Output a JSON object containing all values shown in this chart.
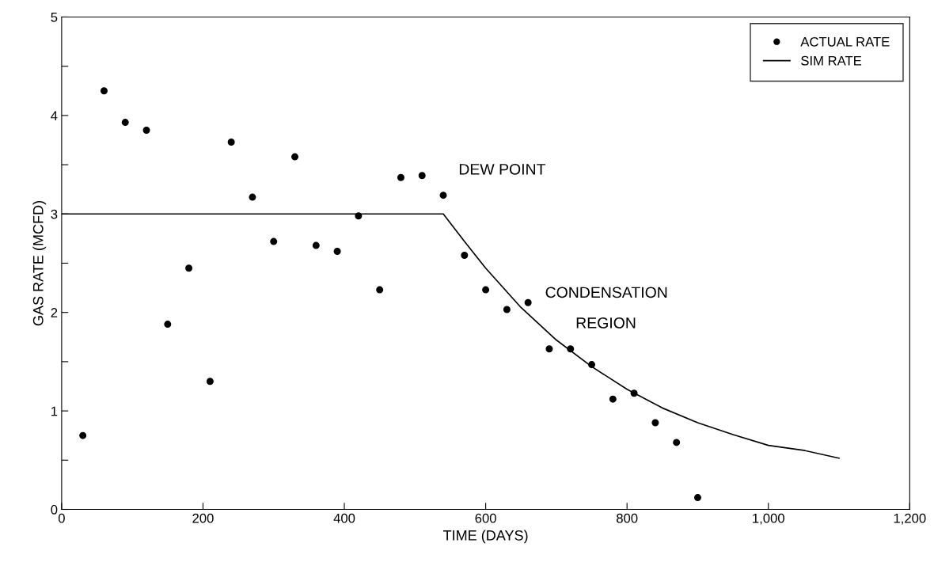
{
  "chart_data": {
    "type": "scatter",
    "xlabel": "TIME (DAYS)",
    "ylabel": "GAS RATE (MCFD)",
    "xlim": [
      0,
      1200
    ],
    "xticks": [
      0,
      200,
      400,
      600,
      800,
      {
        "value": 1000,
        "label": "1,000"
      },
      {
        "value": 1200,
        "label": "1,200"
      }
    ],
    "ylim": [
      0,
      5
    ],
    "yticks": [
      0,
      {
        "value": 0.5,
        "label": null
      },
      1,
      {
        "value": 1.5,
        "label": null
      },
      2,
      {
        "value": 2.5,
        "label": null
      },
      3,
      {
        "value": 3.5,
        "label": null
      },
      4,
      {
        "value": 4.5,
        "label": null
      },
      5
    ],
    "grid": false,
    "legend": "top right",
    "series": [
      {
        "name": "ACTUAL RATE",
        "marker": "circle",
        "color": "#000000",
        "x": [
          30,
          60,
          90,
          120,
          150,
          180,
          210,
          240,
          270,
          300,
          330,
          360,
          390,
          420,
          450,
          480,
          510,
          540,
          570,
          600,
          630,
          660,
          690,
          720,
          750,
          780,
          810,
          840,
          870,
          900
        ],
        "values": [
          0.75,
          4.25,
          3.93,
          3.85,
          1.88,
          2.45,
          1.3,
          3.73,
          3.17,
          2.72,
          3.58,
          2.68,
          2.62,
          2.98,
          2.23,
          3.37,
          3.39,
          3.19,
          2.58,
          2.23,
          2.03,
          2.1,
          1.63,
          1.63,
          1.47,
          1.12,
          1.18,
          0.88,
          0.68,
          0.12
        ]
      },
      {
        "name": "SIM RATE",
        "type": "line",
        "marker": "none",
        "line_style": "solid",
        "color": "#000000",
        "x": [
          0,
          540,
          570,
          600,
          650,
          700,
          750,
          800,
          850,
          900,
          950,
          1000,
          1050,
          1100
        ],
        "values": [
          3.0,
          3.0,
          2.72,
          2.45,
          2.05,
          1.72,
          1.45,
          1.22,
          1.03,
          0.88,
          0.76,
          0.65,
          0.6,
          0.52
        ]
      }
    ],
    "annotations": [
      "DEW POINT",
      "CONDENSATION",
      "REGION"
    ]
  }
}
